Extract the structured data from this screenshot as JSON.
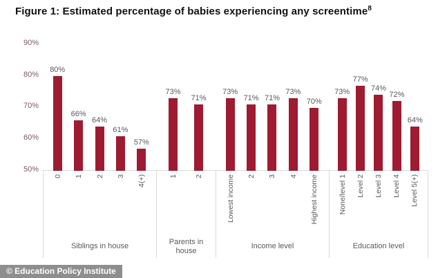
{
  "title": {
    "text": "Figure 1: Estimated percentage of babies experiencing any screentime",
    "superscript": "8"
  },
  "footer": {
    "badge": "© Education Policy Institute"
  },
  "colors": {
    "bar": "#9E1B32",
    "axis_label": "#7d575e",
    "value_label": "#595959",
    "category_label": "#595959",
    "grid_line": "#d9d9d9",
    "badge_bg": "#8e8e8e",
    "badge_text": "#ffffff"
  },
  "chart_data": {
    "type": "bar",
    "title": "Figure 1: Estimated percentage of babies experiencing any screentime",
    "xlabel": "",
    "ylabel": "",
    "unit": "%",
    "ylim": [
      50,
      90
    ],
    "baseline": 50,
    "grid": false,
    "legend": false,
    "yticks": [
      "90%",
      "80%",
      "70%",
      "60%",
      "50%"
    ],
    "groups": [
      {
        "label": "Siblings in house",
        "categories": [
          "0",
          "1",
          "2",
          "3",
          "4(+)"
        ],
        "values": [
          80,
          66,
          64,
          61,
          57
        ]
      },
      {
        "label": "Parents in house",
        "categories": [
          "1",
          "2"
        ],
        "values": [
          73,
          71
        ]
      },
      {
        "label": "Income level",
        "categories": [
          "Lowest income",
          "2",
          "3",
          "4",
          "Highest income"
        ],
        "values": [
          73,
          71,
          71,
          73,
          70
        ]
      },
      {
        "label": "Education level",
        "categories": [
          "None/level 1",
          "Level 2",
          "Level 3",
          "Level 4",
          "Level 5(+)"
        ],
        "values": [
          73,
          77,
          74,
          72,
          64
        ]
      }
    ]
  }
}
